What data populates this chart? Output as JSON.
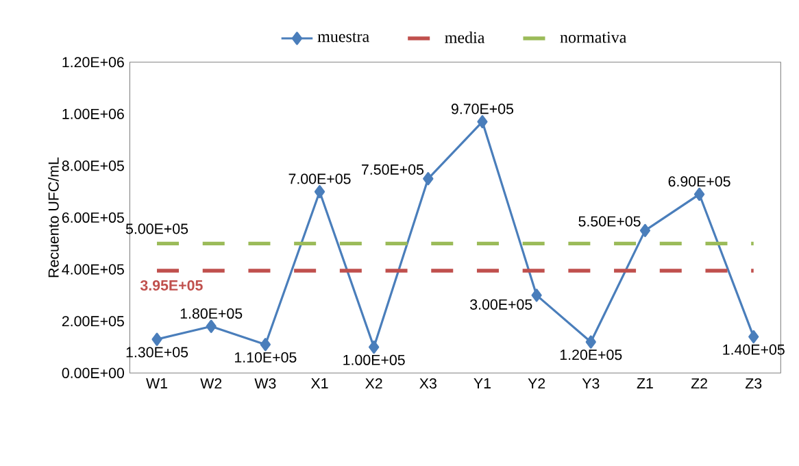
{
  "chart_data": {
    "type": "line",
    "ylabel": "Recuento UFC/mL",
    "categories": [
      "W1",
      "W2",
      "W3",
      "X1",
      "X2",
      "X3",
      "Y1",
      "Y2",
      "Y3",
      "Z1",
      "Z2",
      "Z3"
    ],
    "series": [
      {
        "name": "muestra",
        "color": "#4a7ebb",
        "marker": "diamond",
        "line_style": "solid",
        "values": [
          130000,
          180000,
          110000,
          700000,
          100000,
          750000,
          970000,
          300000,
          120000,
          550000,
          690000,
          140000
        ],
        "value_labels": [
          "1.30E+05",
          "1.80E+05",
          "1.10E+05",
          "7.00E+05",
          "1.00E+05",
          "7.50E+05",
          "9.70E+05",
          "3.00E+05",
          "1.20E+05",
          "5.50E+05",
          "6.90E+05",
          "1.40E+05"
        ]
      },
      {
        "name": "media",
        "color": "#c0504d",
        "marker": "none",
        "line_style": "dashed",
        "values": [
          395000,
          395000,
          395000,
          395000,
          395000,
          395000,
          395000,
          395000,
          395000,
          395000,
          395000,
          395000
        ]
      },
      {
        "name": "normativa",
        "color": "#9bbb59",
        "marker": "none",
        "line_style": "dashed",
        "values": [
          500000,
          500000,
          500000,
          500000,
          500000,
          500000,
          500000,
          500000,
          500000,
          500000,
          500000,
          500000
        ]
      }
    ],
    "annotations": [
      {
        "text": "5.00E+05",
        "x": "W1",
        "y": 500000
      },
      {
        "text": "3.95E+05",
        "x": "W1",
        "y": 395000
      }
    ],
    "ylim": [
      0,
      1200000
    ],
    "yticks": [
      {
        "value": 0,
        "label": "0.00E+00"
      },
      {
        "value": 200000,
        "label": "2.00E+05"
      },
      {
        "value": 400000,
        "label": "4.00E+05"
      },
      {
        "value": 600000,
        "label": "6.00E+05"
      },
      {
        "value": 800000,
        "label": "8.00E+05"
      },
      {
        "value": 1000000,
        "label": "1.00E+06"
      },
      {
        "value": 1200000,
        "label": "1.20E+06"
      }
    ],
    "grid": false,
    "legend": "top"
  }
}
